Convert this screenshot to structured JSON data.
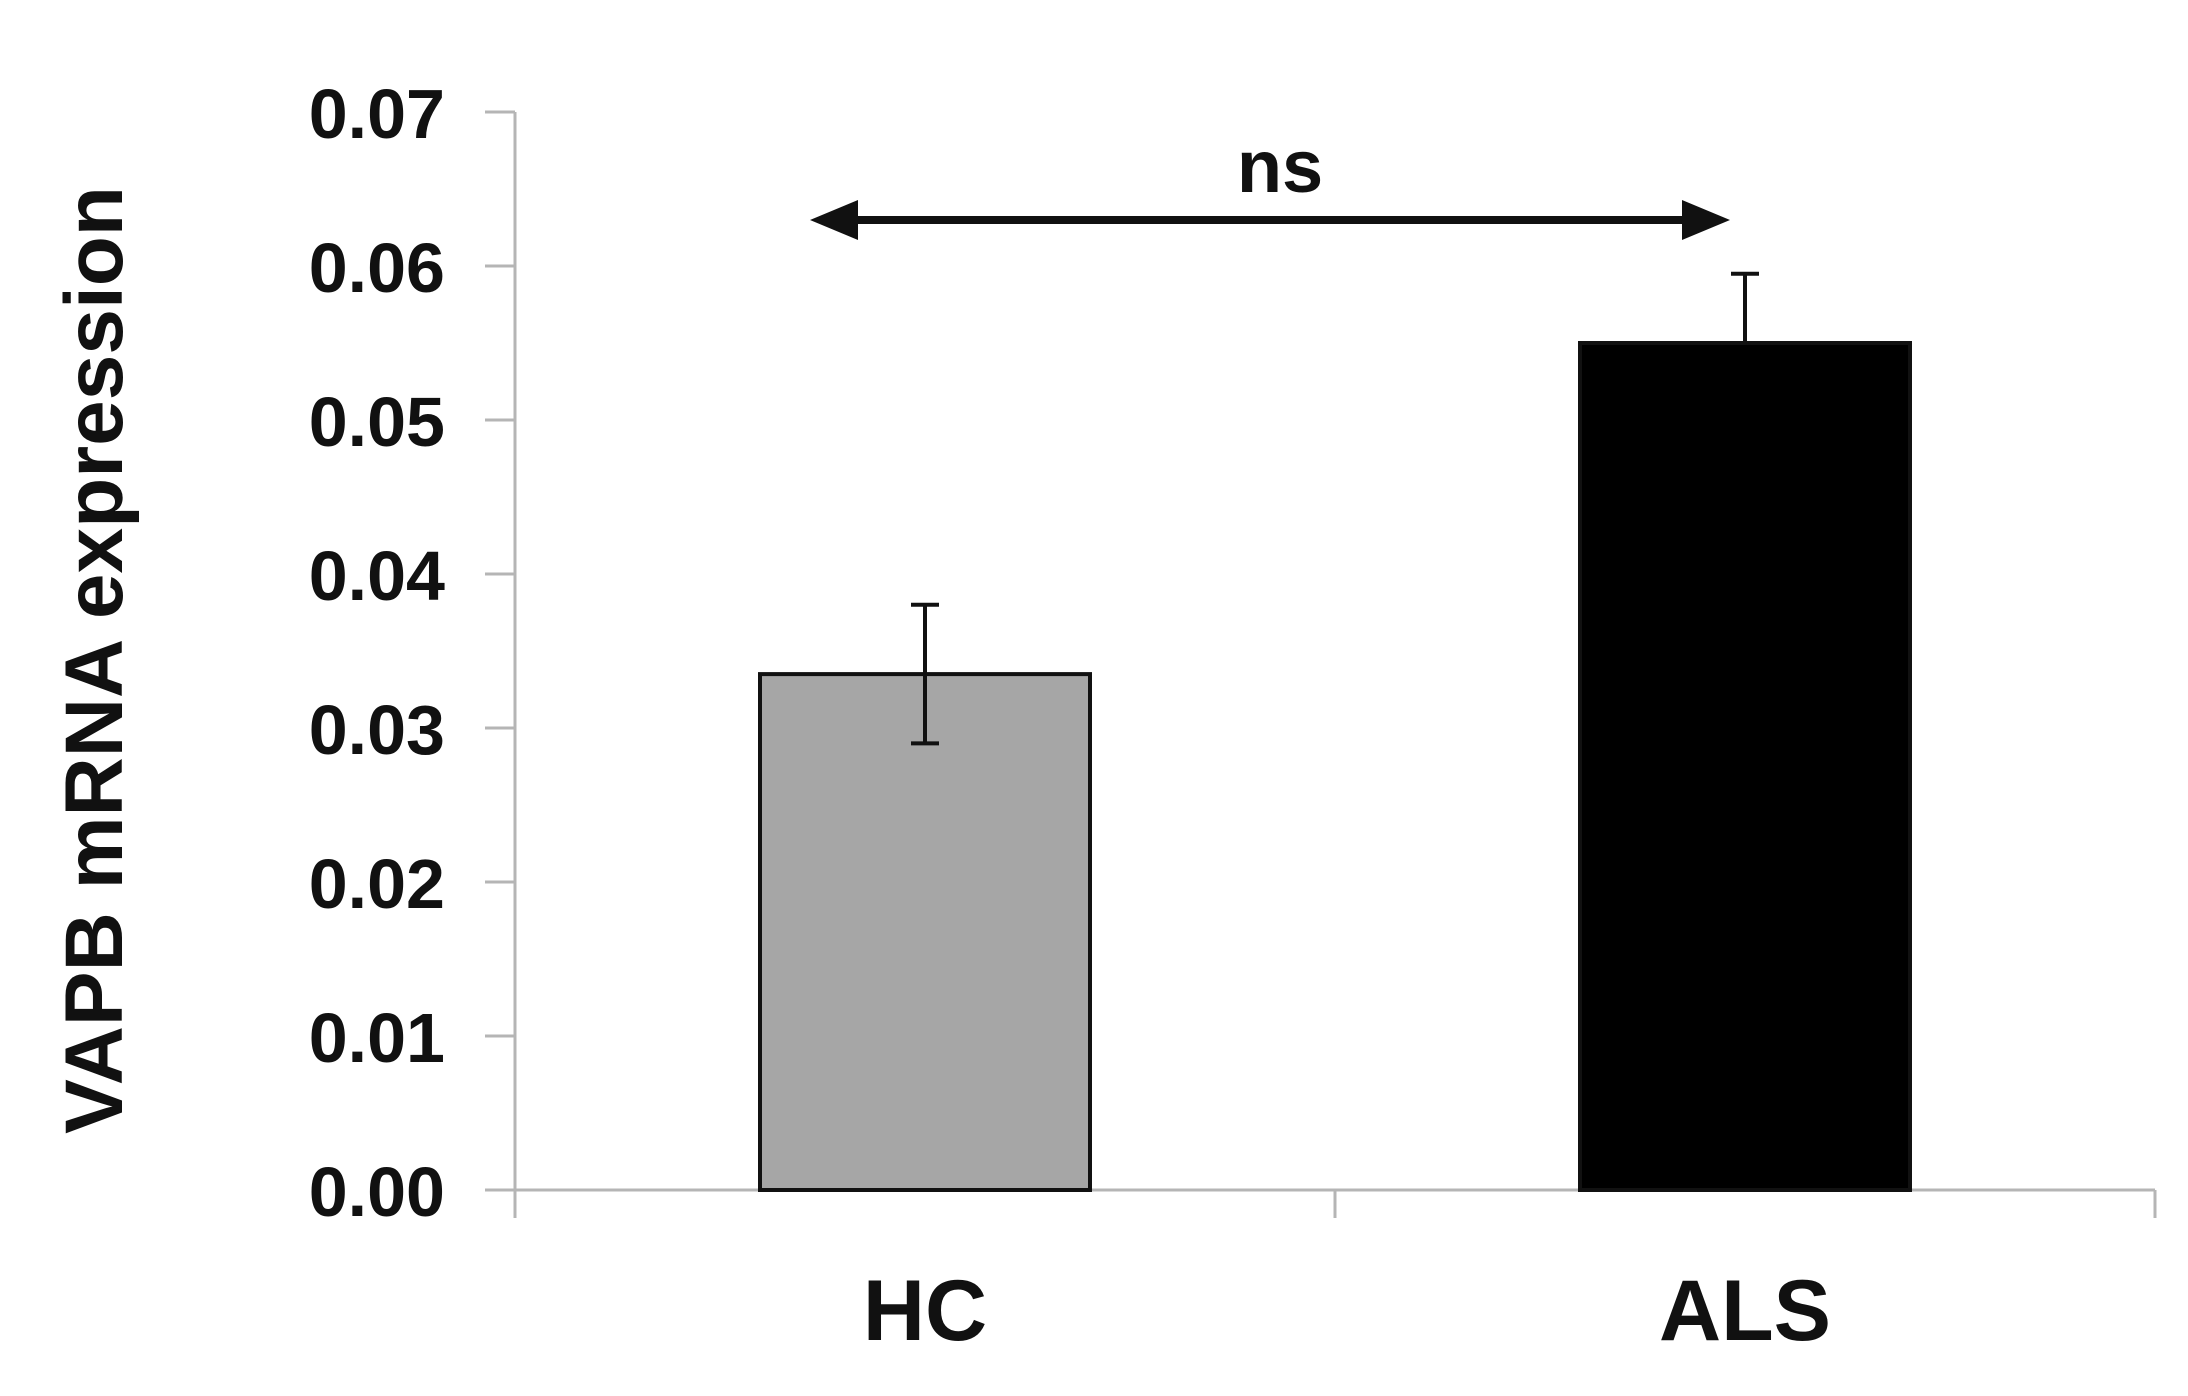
{
  "chart_data": {
    "type": "bar",
    "ylabel": "VAPB mRNA expression",
    "xlabel": "",
    "categories": [
      "HC",
      "ALS"
    ],
    "values": [
      0.0335,
      0.055
    ],
    "error_upper": [
      0.038,
      0.0595
    ],
    "error_lower": [
      0.029,
      0.055
    ],
    "bar_colors": [
      "#a6a6a6",
      "#000000"
    ],
    "ylim": [
      0,
      0.07
    ],
    "yticks": [
      {
        "value": 0.0,
        "label": "0.00"
      },
      {
        "value": 0.01,
        "label": "0.01"
      },
      {
        "value": 0.02,
        "label": "0.02"
      },
      {
        "value": 0.03,
        "label": "0.03"
      },
      {
        "value": 0.04,
        "label": "0.04"
      },
      {
        "value": 0.05,
        "label": "0.05"
      },
      {
        "value": 0.06,
        "label": "0.06"
      },
      {
        "value": 0.07,
        "label": "0.07"
      }
    ],
    "grid": false,
    "annotation": {
      "text": "ns",
      "between": [
        "HC",
        "ALS"
      ]
    }
  }
}
